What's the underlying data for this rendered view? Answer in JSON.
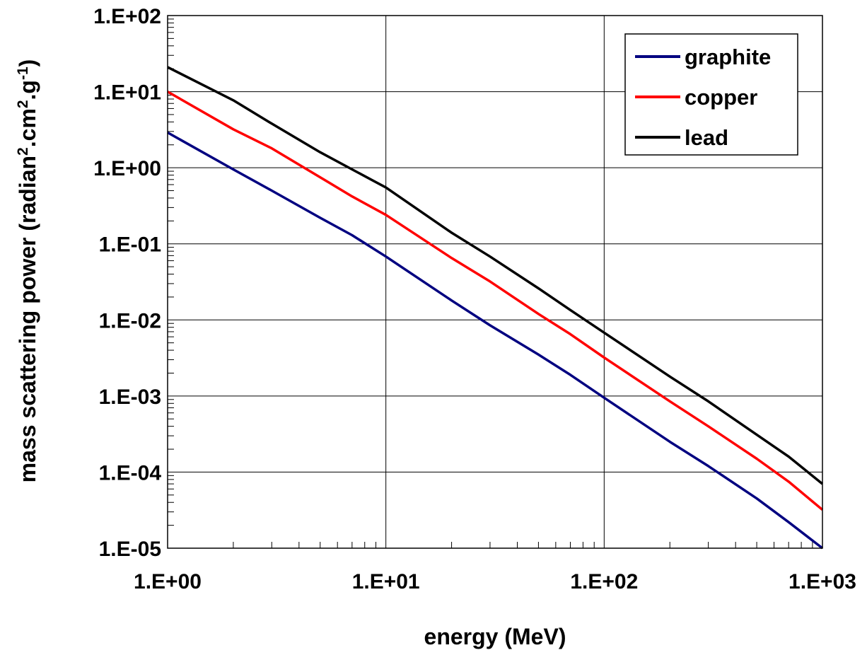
{
  "chart_data": {
    "type": "line",
    "xlabel": "energy (MeV)",
    "ylabel": {
      "parts": [
        "mass scattering power (radian",
        "2",
        ".cm",
        "2",
        ".g",
        "-1",
        ")"
      ]
    },
    "x_scale": "log",
    "y_scale": "log",
    "xlim": [
      1,
      1000
    ],
    "ylim": [
      1e-05,
      100
    ],
    "x_ticks": [
      1,
      10,
      100,
      1000
    ],
    "x_tick_labels": [
      "1.E+00",
      "1.E+01",
      "1.E+02",
      "1.E+03"
    ],
    "y_ticks": [
      100,
      10,
      1,
      0.1,
      0.01,
      0.001,
      0.0001,
      1e-05
    ],
    "y_tick_labels": [
      "1.E+02",
      "1.E+01",
      "1.E+00",
      "1.E-01",
      "1.E-02",
      "1.E-03",
      "1.E-04",
      "1.E-05"
    ],
    "grid": true,
    "legend_position": "top-right",
    "series": [
      {
        "name": "graphite",
        "color": "#000080",
        "x": [
          1,
          2,
          3,
          5,
          7,
          10,
          20,
          30,
          50,
          70,
          100,
          200,
          300,
          500,
          700,
          1000
        ],
        "y": [
          2.9,
          0.95,
          0.5,
          0.22,
          0.13,
          0.068,
          0.018,
          0.0085,
          0.0035,
          0.0019,
          0.00095,
          0.00025,
          0.00012,
          4.5e-05,
          2.2e-05,
          1e-05
        ]
      },
      {
        "name": "copper",
        "color": "#ff0000",
        "x": [
          1,
          2,
          3,
          5,
          7,
          10,
          20,
          30,
          50,
          70,
          100,
          200,
          300,
          500,
          700,
          1000
        ],
        "y": [
          10,
          3.2,
          1.8,
          0.75,
          0.42,
          0.24,
          0.065,
          0.032,
          0.012,
          0.0065,
          0.0032,
          0.00085,
          0.0004,
          0.00015,
          7.5e-05,
          3.2e-05
        ]
      },
      {
        "name": "lead",
        "color": "#000000",
        "x": [
          1,
          2,
          3,
          5,
          7,
          10,
          20,
          30,
          50,
          70,
          100,
          200,
          300,
          500,
          700,
          1000
        ],
        "y": [
          21,
          7.7,
          3.8,
          1.6,
          0.95,
          0.55,
          0.14,
          0.068,
          0.026,
          0.0135,
          0.0068,
          0.0018,
          0.00085,
          0.00031,
          0.00016,
          7e-05
        ]
      }
    ]
  }
}
